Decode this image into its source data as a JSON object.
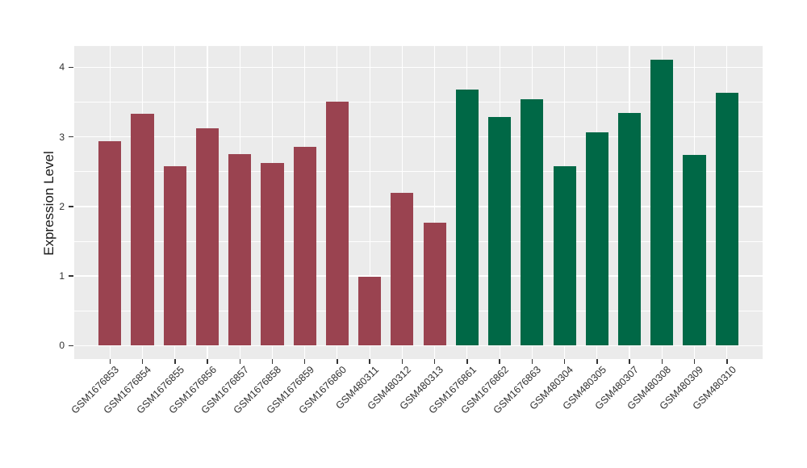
{
  "chart_data": {
    "type": "bar",
    "title": "",
    "xlabel": "",
    "ylabel": "Expression Level",
    "ylim": [
      -0.2,
      4.31
    ],
    "yticks": [
      0,
      1,
      2,
      3,
      4
    ],
    "minor_gridlines": [
      0.5,
      1.5,
      2.5,
      3.5
    ],
    "grid": "on",
    "legend": "none",
    "panel_background": "#EBEBEB",
    "gridline_color": "#FFFFFF",
    "axis_text_color": "#303030",
    "categories": [
      "GSM1676853",
      "GSM1676854",
      "GSM1676855",
      "GSM1676856",
      "GSM1676857",
      "GSM1676858",
      "GSM1676859",
      "GSM1676860",
      "GSM480311",
      "GSM480312",
      "GSM480313",
      "GSM1676861",
      "GSM1676862",
      "GSM1676863",
      "GSM480304",
      "GSM480305",
      "GSM480307",
      "GSM480308",
      "GSM480309",
      "GSM480310"
    ],
    "values": [
      2.94,
      3.33,
      2.58,
      3.12,
      2.75,
      2.62,
      2.86,
      3.51,
      0.99,
      2.19,
      1.77,
      3.68,
      3.28,
      3.54,
      2.58,
      3.06,
      3.34,
      4.11,
      2.74,
      3.63
    ],
    "bar_groups": [
      "maroon",
      "maroon",
      "maroon",
      "maroon",
      "maroon",
      "maroon",
      "maroon",
      "maroon",
      "maroon",
      "maroon",
      "maroon",
      "green",
      "green",
      "green",
      "green",
      "green",
      "green",
      "green",
      "green",
      "green"
    ],
    "group_colors": {
      "maroon": "#9A4350",
      "green": "#006846"
    }
  }
}
